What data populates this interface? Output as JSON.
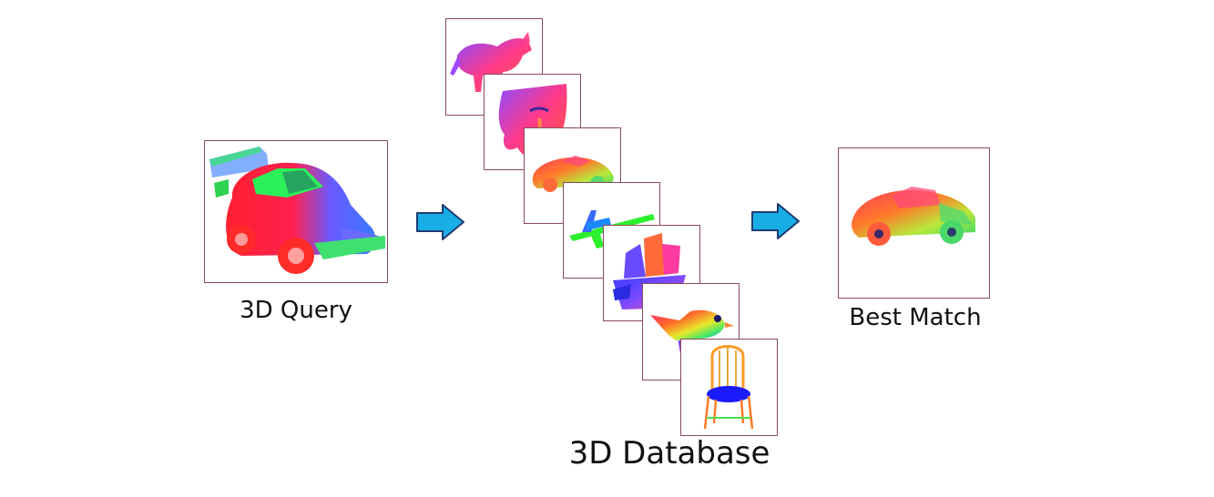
{
  "labels": {
    "query": "3D Query",
    "database": "3D Database",
    "best_match": "Best Match"
  },
  "colors": {
    "frame_border": "#8b4a5a",
    "arrow_fill": "#18aee5",
    "arrow_stroke": "#1f3b73"
  },
  "database_items": [
    {
      "name": "wolf"
    },
    {
      "name": "face"
    },
    {
      "name": "sports-car"
    },
    {
      "name": "airplane"
    },
    {
      "name": "ship"
    },
    {
      "name": "bird"
    },
    {
      "name": "chair"
    }
  ]
}
